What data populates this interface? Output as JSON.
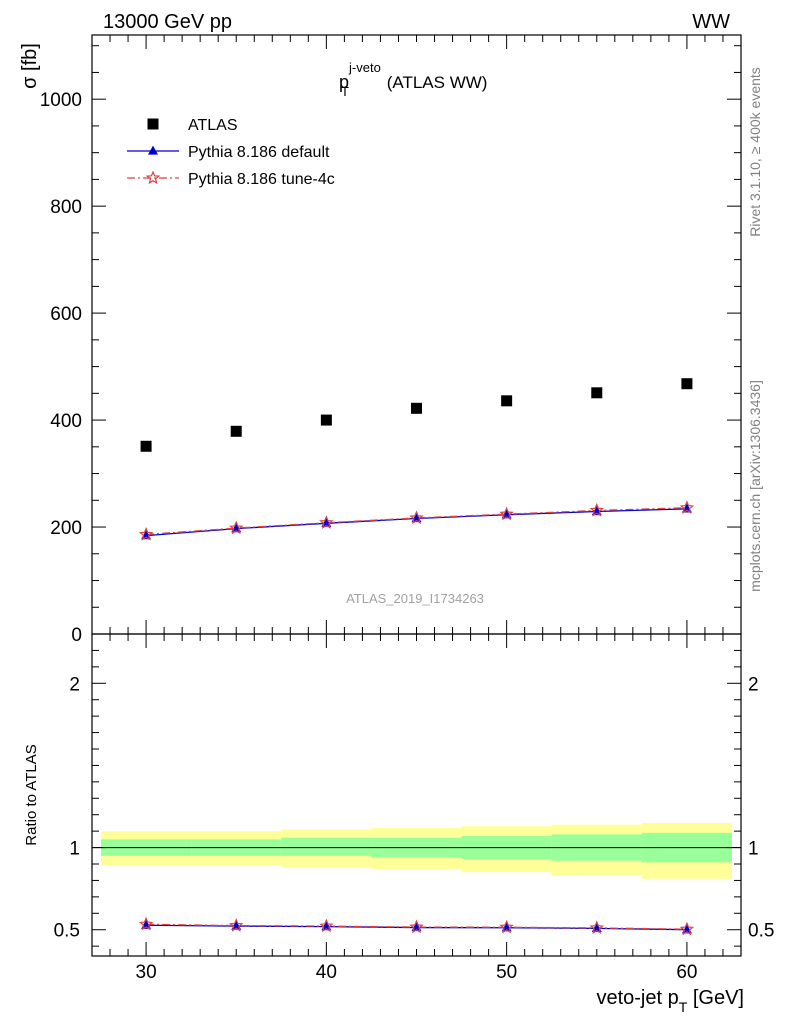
{
  "header": {
    "energy": "13000 GeV pp",
    "process": "WW",
    "analysis_id": "ATLAS_2019_I1734263",
    "side_rivet": "Rivet 3.1.10, ≥ 400k events",
    "side_mcplots": "mcplots.cern.ch [arXiv:1306.3436]"
  },
  "chart_data": [
    {
      "type": "scatter",
      "title_main": "p",
      "title_sup": "j-veto",
      "title_sub": "T",
      "title_rest": " (ATLAS WW)",
      "ylabel": "σ [fb]",
      "xlim": [
        27.0,
        63.0
      ],
      "ylim": [
        0,
        1120
      ],
      "yticks": [
        0,
        200,
        400,
        600,
        800,
        1000
      ],
      "ytick_labels": [
        "0",
        "200",
        "400",
        "600",
        "800",
        "1000"
      ],
      "legend_position": "top-left",
      "series": [
        {
          "name": "ATLAS",
          "marker": "square",
          "color": "#000000",
          "x": [
            30,
            35,
            40,
            45,
            50,
            55,
            60
          ],
          "y": [
            351,
            379,
            400,
            422,
            436,
            451,
            468
          ]
        },
        {
          "name": "Pythia 8.186 default",
          "marker": "triangle",
          "color": "#0000cc",
          "line": "solid",
          "x": [
            30,
            35,
            40,
            45,
            50,
            55,
            60
          ],
          "y": [
            184,
            197,
            207,
            216,
            223,
            229,
            234
          ]
        },
        {
          "name": "Pythia 8.186 tune-4c",
          "marker": "star",
          "color": "#e04040",
          "line": "dashdot",
          "x": [
            30,
            35,
            40,
            45,
            50,
            55,
            60
          ],
          "y": [
            186,
            198,
            208,
            217,
            224,
            231,
            236
          ]
        }
      ]
    },
    {
      "type": "line",
      "ylabel": "Ratio to ATLAS",
      "xlabel_main": "veto-jet p",
      "xlabel_sub": "T",
      "xlabel_rest": " [GeV]",
      "xlim": [
        27.0,
        63.0
      ],
      "ylim": [
        0.34,
        2.3
      ],
      "xticks": [
        30,
        40,
        50,
        60
      ],
      "xtick_labels": [
        "30",
        "40",
        "50",
        "60"
      ],
      "yticks": [
        0.5,
        1,
        2
      ],
      "ytick_labels": [
        "0.5",
        "1",
        "2"
      ],
      "bands": {
        "bin_edges": [
          27.5,
          32.5,
          37.5,
          42.5,
          47.5,
          52.5,
          57.5,
          62.5
        ],
        "stat_lo": [
          0.95,
          0.95,
          0.95,
          0.94,
          0.93,
          0.92,
          0.91
        ],
        "stat_hi": [
          1.05,
          1.05,
          1.06,
          1.06,
          1.07,
          1.08,
          1.09
        ],
        "total_lo": [
          0.89,
          0.89,
          0.88,
          0.87,
          0.85,
          0.83,
          0.81
        ],
        "total_hi": [
          1.1,
          1.1,
          1.11,
          1.12,
          1.13,
          1.14,
          1.15
        ],
        "stat_color": "#99ff99",
        "total_color": "#ffff99"
      },
      "series": [
        {
          "name": "Pythia 8.186 default",
          "color": "#0000cc",
          "x": [
            30,
            35,
            40,
            45,
            50,
            55,
            60
          ],
          "y": [
            0.527,
            0.522,
            0.519,
            0.513,
            0.512,
            0.508,
            0.5
          ]
        },
        {
          "name": "Pythia 8.186 tune-4c",
          "color": "#e04040",
          "x": [
            30,
            35,
            40,
            45,
            50,
            55,
            60
          ],
          "y": [
            0.533,
            0.525,
            0.522,
            0.516,
            0.515,
            0.511,
            0.503
          ]
        }
      ]
    }
  ]
}
